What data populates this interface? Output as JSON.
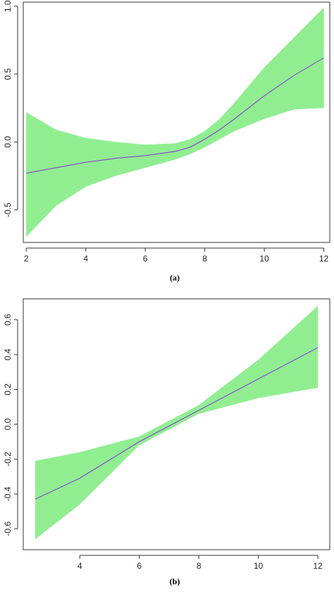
{
  "chart_data": [
    {
      "type": "line",
      "panel_label": "(a)",
      "title": "",
      "xlabel": "",
      "ylabel": "",
      "xlim": [
        1.9,
        12.2
      ],
      "ylim": [
        -0.74,
        1.03
      ],
      "x_ticks": [
        2,
        4,
        6,
        8,
        10,
        12
      ],
      "y_ticks": [
        -0.5,
        0.0,
        0.5,
        1.0
      ],
      "x_tick_labels": [
        "2",
        "4",
        "6",
        "8",
        "10",
        "12"
      ],
      "y_tick_labels": [
        "-0.5",
        "0.0",
        "0.5",
        "1.0"
      ],
      "x": [
        2,
        3,
        4,
        5,
        6,
        7,
        7.5,
        8,
        8.5,
        9,
        10,
        11,
        12
      ],
      "series": [
        {
          "role": "fit",
          "values": [
            -0.23,
            -0.19,
            -0.15,
            -0.12,
            -0.1,
            -0.07,
            -0.04,
            0.02,
            0.09,
            0.17,
            0.34,
            0.49,
            0.62
          ]
        },
        {
          "role": "upper",
          "values": [
            0.22,
            0.09,
            0.03,
            0.0,
            -0.02,
            -0.01,
            0.02,
            0.08,
            0.17,
            0.29,
            0.55,
            0.77,
            0.99
          ]
        },
        {
          "role": "lower",
          "values": [
            -0.7,
            -0.47,
            -0.33,
            -0.25,
            -0.19,
            -0.13,
            -0.09,
            -0.04,
            0.02,
            0.08,
            0.17,
            0.24,
            0.25
          ]
        }
      ],
      "band_color": "#90EE90",
      "line_color": "#8A2BE2",
      "grid": false
    },
    {
      "type": "line",
      "panel_label": "(b)",
      "title": "",
      "xlabel": "",
      "ylabel": "",
      "xlim": [
        2.1,
        12.4
      ],
      "ylim": [
        -0.72,
        0.72
      ],
      "x_ticks": [
        4,
        6,
        8,
        10,
        12
      ],
      "y_ticks": [
        -0.6,
        -0.4,
        -0.2,
        0.0,
        0.2,
        0.4,
        0.6
      ],
      "x_tick_labels": [
        "4",
        "6",
        "8",
        "10",
        "12"
      ],
      "y_tick_labels": [
        "-0.6",
        "-0.4",
        "-0.2",
        "0.0",
        "0.2",
        "0.4",
        "0.6"
      ],
      "x": [
        2.5,
        4,
        6,
        8,
        10,
        12
      ],
      "series": [
        {
          "role": "fit",
          "values": [
            -0.43,
            -0.31,
            -0.1,
            0.08,
            0.26,
            0.44
          ]
        },
        {
          "role": "upper",
          "values": [
            -0.21,
            -0.16,
            -0.07,
            0.11,
            0.37,
            0.68
          ]
        },
        {
          "role": "lower",
          "values": [
            -0.66,
            -0.46,
            -0.12,
            0.06,
            0.15,
            0.21
          ]
        }
      ],
      "band_color": "#90EE90",
      "line_color": "#8A2BE2",
      "grid": false
    }
  ]
}
